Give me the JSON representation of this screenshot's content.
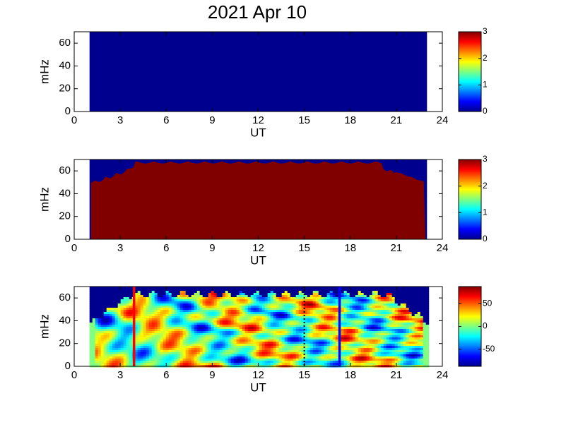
{
  "chart_data": [
    {
      "type": "spectrogram",
      "title": "2021 Apr 10",
      "xlabel": "UT",
      "ylabel": "mHz",
      "xlim": [
        0,
        24
      ],
      "xticks": [
        0,
        3,
        6,
        9,
        12,
        15,
        18,
        21,
        24
      ],
      "ylim": [
        0,
        70
      ],
      "yticks": [
        0,
        20,
        40,
        60
      ],
      "data_x": [
        1,
        23
      ],
      "colorbar": {
        "clim": [
          0,
          3
        ],
        "ticks": [
          0,
          1,
          2,
          3
        ]
      },
      "fill": "low"
    },
    {
      "type": "spectrogram",
      "xlabel": "UT",
      "ylabel": "mHz",
      "xlim": [
        0,
        24
      ],
      "xticks": [
        0,
        3,
        6,
        9,
        12,
        15,
        18,
        21,
        24
      ],
      "ylim": [
        0,
        70
      ],
      "yticks": [
        0,
        20,
        40,
        60
      ],
      "data_x": [
        1,
        23
      ],
      "colorbar": {
        "clim": [
          0,
          3
        ],
        "ticks": [
          0,
          1,
          2,
          3
        ]
      },
      "fill": "high"
    },
    {
      "type": "spectrogram",
      "xlabel": "UT",
      "ylabel": "mHz",
      "xlim": [
        0,
        24
      ],
      "xticks": [
        0,
        3,
        6,
        9,
        12,
        15,
        18,
        21,
        24
      ],
      "ylim": [
        0,
        70
      ],
      "yticks": [
        0,
        20,
        40,
        60
      ],
      "data_x": [
        1,
        23
      ],
      "colorbar": {
        "clim": [
          -87.5,
          87.5
        ],
        "ticks": [
          -50,
          0,
          50
        ]
      },
      "fill": "texture",
      "vlines": [
        {
          "x": 3.9,
          "color": "#ff0000",
          "style": "solid"
        },
        {
          "x": 15,
          "color": "#000000",
          "style": "dotted"
        },
        {
          "x": 17.3,
          "color": "#0000ff",
          "style": "solid"
        }
      ]
    }
  ]
}
